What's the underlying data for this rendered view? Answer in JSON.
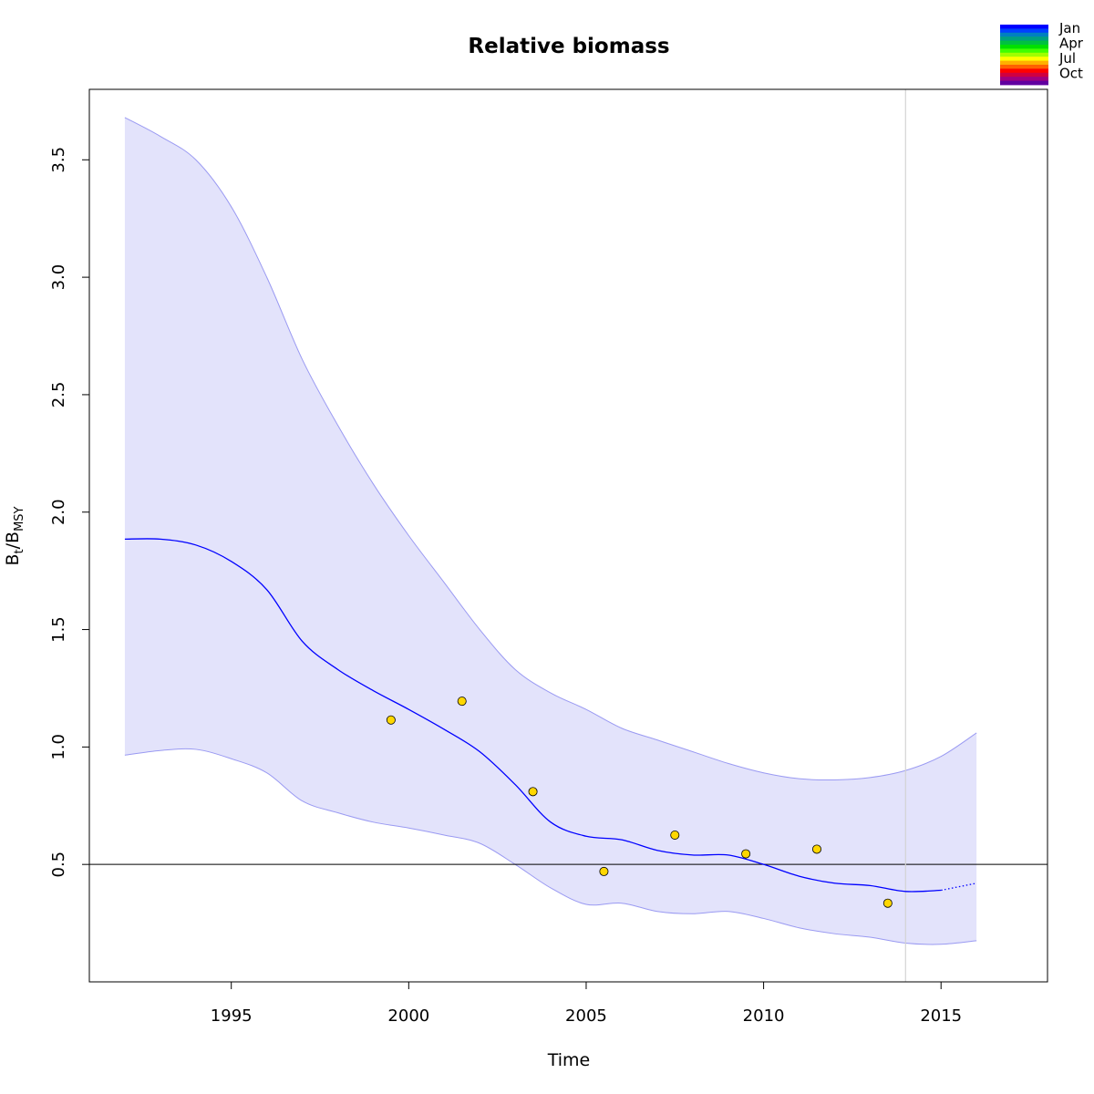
{
  "chart_data": {
    "type": "line",
    "title": "Relative biomass",
    "xlabel": "Time",
    "ylabel": "Bt/BMSY",
    "ylabel_parts": {
      "main": "B",
      "sub1": "t",
      "sep": "/B",
      "sub2": "MSY"
    },
    "xlim": [
      1991.0,
      2018.0
    ],
    "ylim": [
      0.0,
      3.8
    ],
    "x_ticks": [
      1995,
      2000,
      2005,
      2010,
      2015
    ],
    "y_ticks": [
      0.5,
      1.0,
      1.5,
      2.0,
      2.5,
      3.0,
      3.5
    ],
    "x_tick_labels": [
      "1995",
      "2000",
      "2005",
      "2010",
      "2015"
    ],
    "y_tick_labels": [
      "0.5",
      "1.0",
      "1.5",
      "2.0",
      "2.5",
      "3.0",
      "3.5"
    ],
    "grid": false,
    "reference_line_y": 0.5,
    "vertical_line_x": 2014.0,
    "series": [
      {
        "role": "estimate",
        "x": [
          1992.0,
          1993.0,
          1994.0,
          1995.0,
          1996.0,
          1997.0,
          1998.0,
          1999.0,
          2000.0,
          2001.0,
          2002.0,
          2003.0,
          2004.0,
          2005.0,
          2006.0,
          2007.0,
          2008.0,
          2009.0,
          2010.0,
          2011.0,
          2012.0,
          2013.0,
          2014.0,
          2015.0
        ],
        "y": [
          1.885,
          1.885,
          1.86,
          1.79,
          1.67,
          1.45,
          1.33,
          1.24,
          1.16,
          1.075,
          0.98,
          0.84,
          0.68,
          0.62,
          0.605,
          0.56,
          0.54,
          0.54,
          0.5,
          0.45,
          0.42,
          0.41,
          0.385,
          0.39
        ]
      },
      {
        "role": "prediction",
        "x": [
          2015.0,
          2016.0
        ],
        "y": [
          0.39,
          0.42
        ]
      },
      {
        "role": "ci-upper",
        "x": [
          1992.0,
          1993.0,
          1994.0,
          1995.0,
          1996.0,
          1997.0,
          1998.0,
          1999.0,
          2000.0,
          2001.0,
          2002.0,
          2003.0,
          2004.0,
          2005.0,
          2006.0,
          2007.0,
          2008.0,
          2009.0,
          2010.0,
          2011.0,
          2012.0,
          2013.0,
          2014.0,
          2015.0,
          2016.0
        ],
        "y": [
          3.68,
          3.6,
          3.5,
          3.3,
          3.0,
          2.65,
          2.37,
          2.12,
          1.9,
          1.7,
          1.5,
          1.33,
          1.23,
          1.16,
          1.08,
          1.03,
          0.98,
          0.93,
          0.89,
          0.865,
          0.86,
          0.87,
          0.9,
          0.96,
          1.06
        ]
      },
      {
        "role": "ci-lower",
        "x": [
          1992.0,
          1993.0,
          1994.0,
          1995.0,
          1996.0,
          1997.0,
          1998.0,
          1999.0,
          2000.0,
          2001.0,
          2002.0,
          2003.0,
          2004.0,
          2005.0,
          2006.0,
          2007.0,
          2008.0,
          2009.0,
          2010.0,
          2011.0,
          2012.0,
          2013.0,
          2014.0,
          2015.0,
          2016.0
        ],
        "y": [
          0.965,
          0.985,
          0.99,
          0.95,
          0.89,
          0.77,
          0.72,
          0.68,
          0.655,
          0.625,
          0.59,
          0.5,
          0.4,
          0.33,
          0.335,
          0.3,
          0.29,
          0.3,
          0.27,
          0.23,
          0.205,
          0.19,
          0.165,
          0.16,
          0.175
        ]
      },
      {
        "role": "observations",
        "x": [
          1999.5,
          2001.5,
          2003.5,
          2005.5,
          2007.5,
          2009.5,
          2011.5,
          2013.5
        ],
        "y": [
          1.115,
          1.195,
          0.81,
          0.47,
          0.625,
          0.545,
          0.565,
          0.335
        ]
      }
    ],
    "legend": {
      "placement": "top-right",
      "title": "",
      "labels": [
        "Jan",
        "Apr",
        "Jul",
        "Oct"
      ],
      "colors": [
        "#0000FF",
        "#0040FF",
        "#0080C0",
        "#00A080",
        "#00C040",
        "#00E000",
        "#40FF00",
        "#A0FF00",
        "#FFFF00",
        "#FFB000",
        "#FF6000",
        "#FF0000",
        "#D00040",
        "#A00080",
        "#6000A0"
      ]
    },
    "colors": {
      "band_fill": "#E3E3FB",
      "band_edge": "#9A9AF2",
      "estimate_line": "#0000FF",
      "observation_fill": "#FFD700",
      "observation_stroke": "#000000",
      "reference_line": "#000000",
      "vertical_line": "#D3D3D3"
    }
  }
}
